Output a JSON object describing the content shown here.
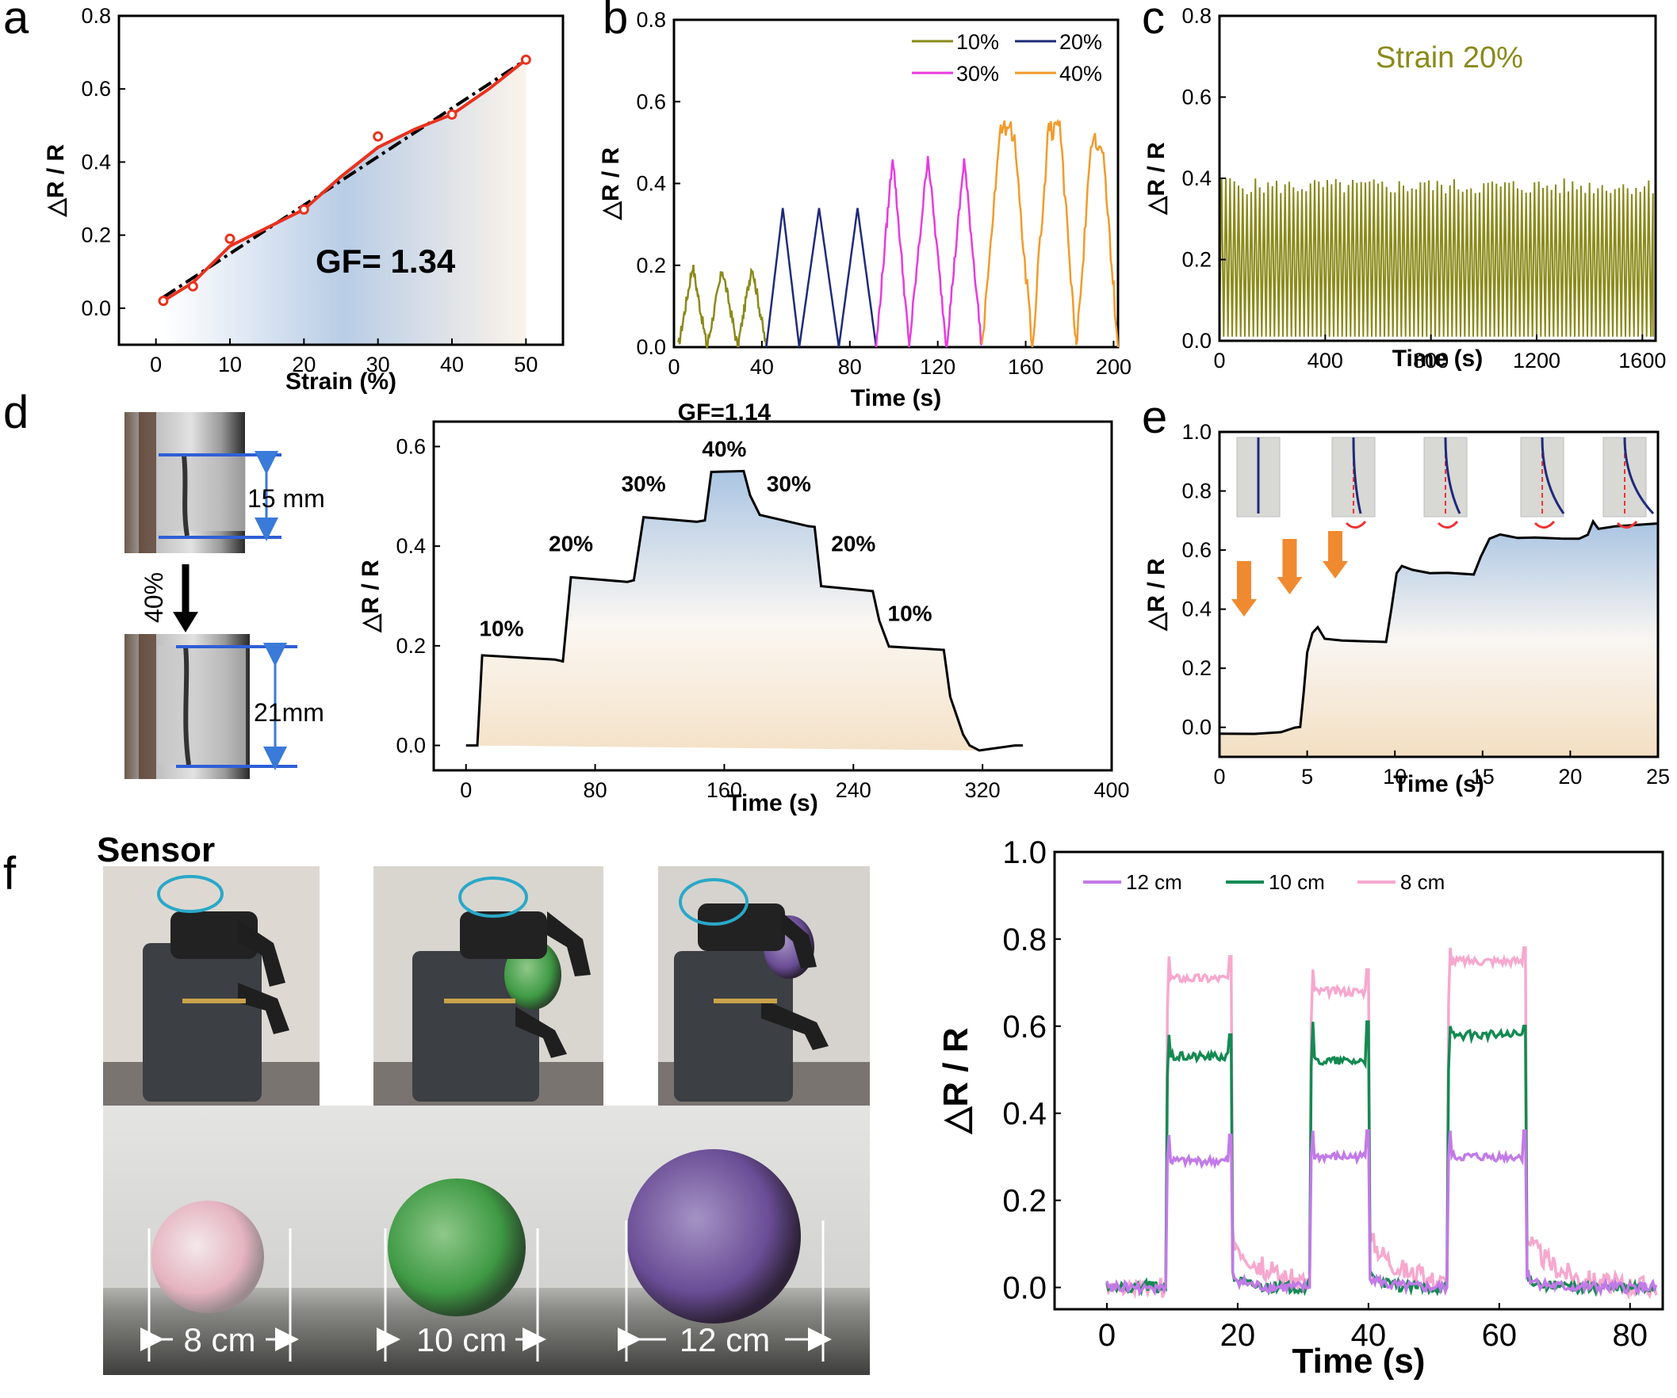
{
  "panel_labels": [
    "a",
    "b",
    "c",
    "d",
    "e",
    "f"
  ],
  "colors": {
    "fit_red": "#e8321e",
    "olive": "#8a8a1a",
    "navy": "#1f2a7a",
    "magenta": "#e83ae0",
    "orange": "#f39a2a",
    "purple": "#c27ae8",
    "green": "#138a52",
    "pink": "#f7a8cf",
    "blue_fill": "#b8cfe6",
    "beige_fill": "#f6ead8",
    "arrow_blue": "#3a7ad8",
    "arrow_orange": "#f08a30",
    "teal_ring": "#2aa8c8"
  },
  "chart_data": [
    {
      "id": "a",
      "type": "scatter",
      "xlabel": "Strain (%)",
      "ylabel": "△R / R",
      "xlim": [
        -5,
        55
      ],
      "ylim": [
        -0.1,
        0.8
      ],
      "xticks": [
        0,
        10,
        20,
        30,
        40,
        50
      ],
      "yticks": [
        0.0,
        0.2,
        0.4,
        0.6,
        0.8
      ],
      "annotation": "GF= 1.34",
      "series": [
        {
          "kind": "points",
          "x": [
            1,
            5,
            10,
            20,
            30,
            40,
            50
          ],
          "y": [
            0.02,
            0.06,
            0.19,
            0.27,
            0.47,
            0.53,
            0.68
          ]
        },
        {
          "kind": "smooth",
          "x": [
            1,
            5,
            10,
            15,
            20,
            25,
            30,
            35,
            40,
            45,
            50
          ],
          "y": [
            0.02,
            0.07,
            0.17,
            0.22,
            0.27,
            0.36,
            0.44,
            0.49,
            0.53,
            0.6,
            0.68
          ]
        },
        {
          "kind": "fit",
          "x": [
            1,
            50
          ],
          "y": [
            0.03,
            0.68
          ]
        }
      ]
    },
    {
      "id": "b",
      "type": "line",
      "xlabel": "Time (s)",
      "ylabel": "△R / R",
      "xlim": [
        0,
        202
      ],
      "ylim": [
        0.0,
        0.8
      ],
      "xticks": [
        0,
        40,
        80,
        120,
        160,
        200
      ],
      "yticks": [
        0.0,
        0.2,
        0.4,
        0.6,
        0.8
      ],
      "series": [
        {
          "name": "10%",
          "cycles": [
            {
              "start": 2,
              "end": 15,
              "peak": 0.2
            },
            {
              "start": 15,
              "end": 29,
              "peak": 0.19
            },
            {
              "start": 29,
              "end": 42,
              "peak": 0.2
            }
          ]
        },
        {
          "name": "20%",
          "cycles": [
            {
              "start": 42,
              "end": 57,
              "peak": 0.34
            },
            {
              "start": 57,
              "end": 75,
              "peak": 0.34
            },
            {
              "start": 75,
              "end": 92,
              "peak": 0.34
            }
          ]
        },
        {
          "name": "30%",
          "cycles": [
            {
              "start": 92,
              "end": 107,
              "peak": 0.47
            },
            {
              "start": 107,
              "end": 124,
              "peak": 0.47
            },
            {
              "start": 124,
              "end": 140,
              "peak": 0.46
            }
          ]
        },
        {
          "name": "40%",
          "cycles": [
            {
              "start": 140,
              "end": 163,
              "peak": 0.53
            },
            {
              "start": 163,
              "end": 183,
              "peak": 0.53
            },
            {
              "start": 183,
              "end": 202,
              "peak": 0.5
            }
          ]
        }
      ]
    },
    {
      "id": "c",
      "type": "line",
      "xlabel": "Time (s)",
      "ylabel": "△R / R",
      "xlim": [
        0,
        1650
      ],
      "ylim": [
        0.0,
        0.8
      ],
      "xticks": [
        0,
        400,
        800,
        1200,
        1600
      ],
      "yticks": [
        0.0,
        0.2,
        0.4,
        0.6,
        0.8
      ],
      "annotation": "Strain 20%",
      "series": [
        {
          "name": "Strain 20%",
          "cycle_period_s": 16,
          "peak": 0.38,
          "trough": 0.0
        }
      ]
    },
    {
      "id": "d",
      "type": "line",
      "title": "GF=1.14",
      "xlabel": "Time (s)",
      "ylabel": "△R / R",
      "xlim": [
        -20,
        400
      ],
      "ylim": [
        -0.05,
        0.65
      ],
      "xticks": [
        0,
        80,
        160,
        240,
        320,
        400
      ],
      "yticks": [
        0.0,
        0.2,
        0.4,
        0.6
      ],
      "x": [
        0,
        7,
        10,
        55,
        60,
        65,
        100,
        104,
        110,
        143,
        148,
        152,
        172,
        176,
        182,
        212,
        216,
        220,
        252,
        256,
        262,
        296,
        300,
        308,
        312,
        318,
        340,
        345
      ],
      "y": [
        0.0,
        0.0,
        0.18,
        0.17,
        0.17,
        0.34,
        0.33,
        0.33,
        0.46,
        0.45,
        0.45,
        0.55,
        0.55,
        0.5,
        0.46,
        0.44,
        0.44,
        0.32,
        0.31,
        0.25,
        0.2,
        0.19,
        0.1,
        0.02,
        0.0,
        -0.01,
        0.0,
        0.0
      ],
      "step_labels": [
        {
          "text": "10%",
          "x": 22,
          "y": 0.22
        },
        {
          "text": "20%",
          "x": 65,
          "y": 0.39
        },
        {
          "text": "30%",
          "x": 110,
          "y": 0.51
        },
        {
          "text": "40%",
          "x": 160,
          "y": 0.58
        },
        {
          "text": "30%",
          "x": 200,
          "y": 0.51
        },
        {
          "text": "20%",
          "x": 240,
          "y": 0.39
        },
        {
          "text": "10%",
          "x": 275,
          "y": 0.25
        }
      ]
    },
    {
      "id": "e",
      "type": "line",
      "xlabel": "Time (s)",
      "ylabel": "△R / R",
      "xlim": [
        0,
        25
      ],
      "ylim": [
        -0.1,
        1.0
      ],
      "xticks": [
        0,
        5,
        10,
        15,
        20,
        25
      ],
      "yticks": [
        0.0,
        0.2,
        0.4,
        0.6,
        0.8,
        1.0
      ],
      "x": [
        0,
        2,
        3.5,
        4.3,
        4.6,
        4.8,
        5.0,
        5.3,
        5.6,
        6,
        7,
        8,
        9.5,
        9.8,
        10.1,
        10.4,
        11,
        12,
        13,
        14.5,
        14.9,
        15.4,
        16,
        17,
        18,
        19.5,
        20.5,
        21,
        21.3,
        21.6,
        22.5,
        25
      ],
      "y": [
        -0.02,
        -0.02,
        -0.02,
        0.0,
        0.0,
        0.12,
        0.25,
        0.32,
        0.34,
        0.3,
        0.29,
        0.29,
        0.29,
        0.4,
        0.52,
        0.55,
        0.53,
        0.52,
        0.52,
        0.52,
        0.58,
        0.64,
        0.65,
        0.64,
        0.64,
        0.64,
        0.64,
        0.65,
        0.7,
        0.67,
        0.68,
        0.69
      ],
      "insets": 5
    },
    {
      "id": "f",
      "type": "line",
      "xlabel": "Time (s)",
      "ylabel": "△R / R",
      "xlim": [
        -8,
        85
      ],
      "ylim": [
        -0.05,
        1.0
      ],
      "xticks": [
        0,
        20,
        40,
        60,
        80
      ],
      "yticks": [
        0.0,
        0.2,
        0.4,
        0.6,
        0.8,
        1.0
      ],
      "grasp_windows": [
        [
          9,
          19
        ],
        [
          31,
          40
        ],
        [
          52,
          64
        ]
      ],
      "series": [
        {
          "name": "12 cm",
          "levels": [
            0.29,
            0.3,
            0.3
          ],
          "spikes": [
            0.35,
            0.36,
            0.36
          ]
        },
        {
          "name": "10 cm",
          "levels": [
            0.53,
            0.52,
            0.58
          ],
          "spikes": [
            0.58,
            0.61,
            0.6
          ]
        },
        {
          "name": "8 cm",
          "levels": [
            0.71,
            0.68,
            0.75
          ],
          "spikes": [
            0.76,
            0.73,
            0.78
          ]
        }
      ]
    }
  ],
  "panel_d_photos": {
    "top_length": "15 mm",
    "strain": "40%",
    "bottom_length": "21mm"
  },
  "panel_f_photos": {
    "sensor_label": "Sensor",
    "ball_labels": [
      "8 cm",
      "10 cm",
      "12 cm"
    ]
  }
}
